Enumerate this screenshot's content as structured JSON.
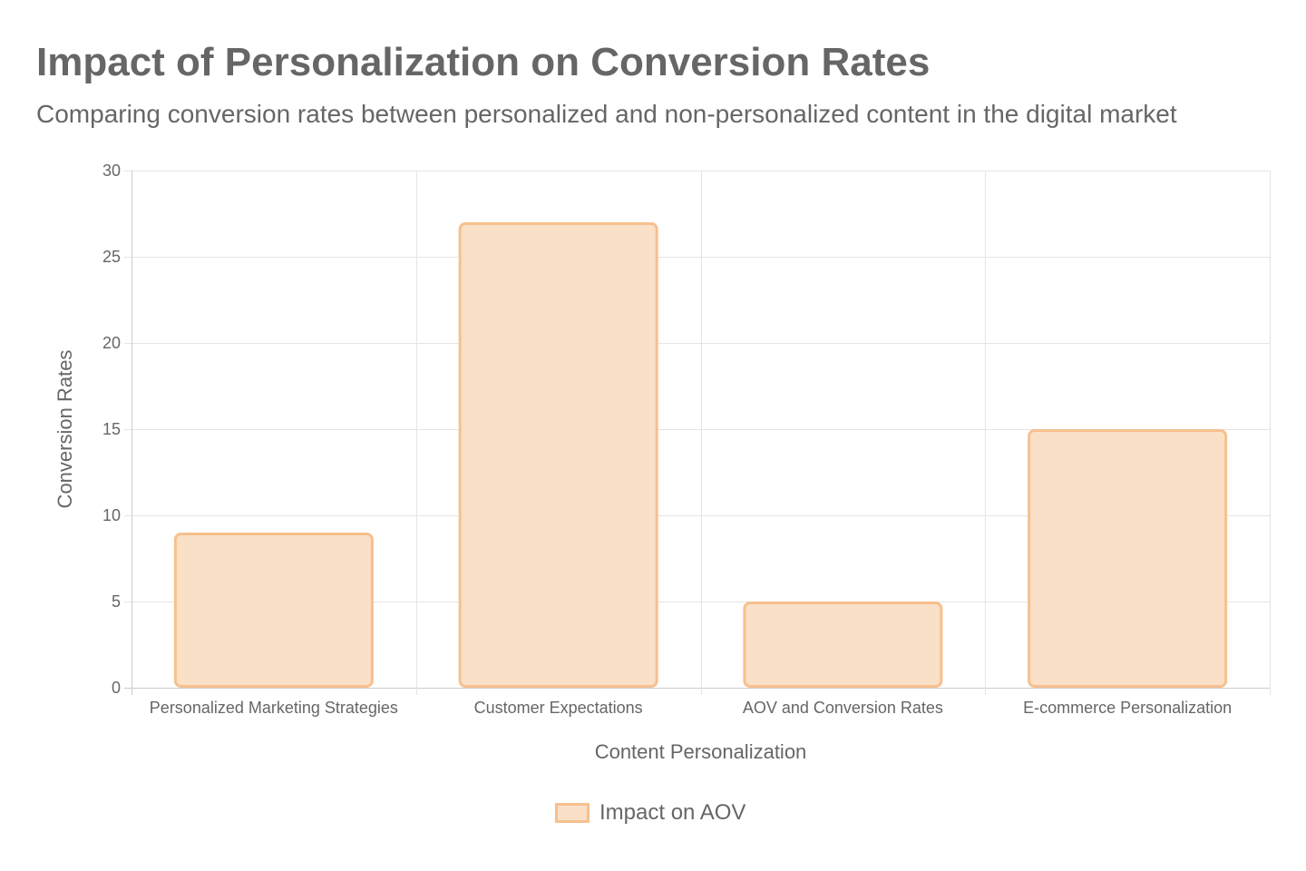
{
  "chart_data": {
    "type": "bar",
    "title": "Impact of Personalization on Conversion Rates",
    "subtitle": "Comparing conversion rates between personalized and non-personalized content in the digital market",
    "xlabel": "Content Personalization",
    "ylabel": "Conversion Rates",
    "categories": [
      "Personalized Marketing Strategies",
      "Customer Expectations",
      "AOV and Conversion Rates",
      "E-commerce Personalization"
    ],
    "series": [
      {
        "name": "Impact on AOV",
        "values": [
          9,
          27,
          5,
          15
        ],
        "fill": "#f9e0c7",
        "border": "#f7c08e"
      }
    ],
    "ylim": [
      0,
      30
    ],
    "yticks": [
      0,
      5,
      10,
      15,
      20,
      25,
      30
    ],
    "grid": true,
    "legend_position": "bottom"
  },
  "legend": {
    "label": "Impact on AOV"
  }
}
